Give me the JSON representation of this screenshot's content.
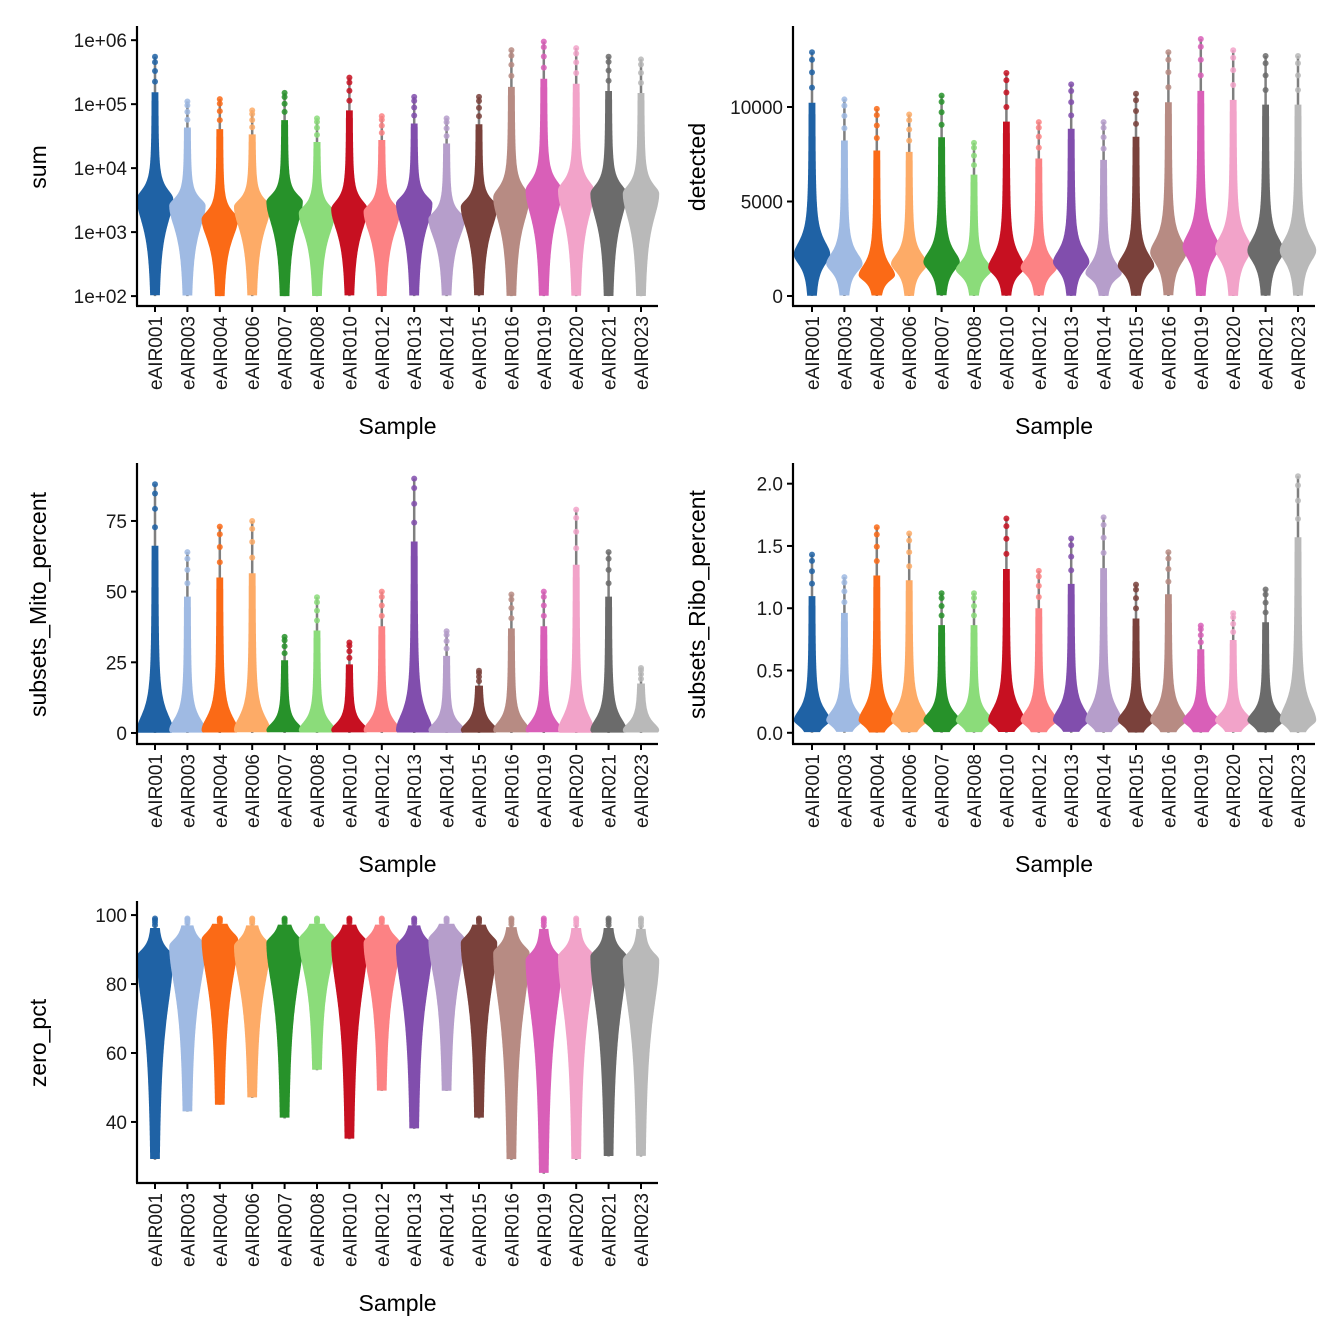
{
  "samples": [
    "eAIR001",
    "eAIR003",
    "eAIR004",
    "eAIR006",
    "eAIR007",
    "eAIR008",
    "eAIR010",
    "eAIR012",
    "eAIR013",
    "eAIR014",
    "eAIR015",
    "eAIR016",
    "eAIR019",
    "eAIR020",
    "eAIR021",
    "eAIR023"
  ],
  "colors": [
    "#1f62a5",
    "#9fbae3",
    "#fb6a16",
    "#fdab67",
    "#27922a",
    "#8bdc7a",
    "#c71021",
    "#fc8284",
    "#814ead",
    "#b69ecb",
    "#7a413b",
    "#b78b83",
    "#d95fb8",
    "#f2a3c9",
    "#6b6b6b",
    "#b9b9b9"
  ],
  "chart_data": [
    {
      "type": "violin",
      "ylabel": "sum",
      "xlabel": "Sample",
      "scale": "log10",
      "ylim": [
        70,
        1550000
      ],
      "yticks": [
        100,
        1000,
        10000,
        100000,
        1000000
      ],
      "ytick_labels": [
        "1e+02",
        "1e+03",
        "1e+04",
        "1e+05",
        "1e+06"
      ],
      "min": [
        100,
        100,
        100,
        100,
        100,
        100,
        100,
        100,
        100,
        100,
        100,
        100,
        100,
        100,
        100,
        100
      ],
      "mode": [
        3300,
        2600,
        1600,
        2500,
        3000,
        2000,
        2300,
        2100,
        2800,
        1600,
        2500,
        3500,
        4500,
        4500,
        4000,
        4000
      ],
      "max": [
        550000,
        110000,
        120000,
        80000,
        150000,
        60000,
        260000,
        65000,
        130000,
        60000,
        130000,
        700000,
        950000,
        750000,
        550000,
        500000
      ]
    },
    {
      "type": "violin",
      "ylabel": "detected",
      "xlabel": "Sample",
      "scale": "linear",
      "ylim": [
        -530,
        14180
      ],
      "yticks": [
        0,
        5000,
        10000
      ],
      "ytick_labels": [
        "0",
        "5000",
        "10000"
      ],
      "min": [
        0,
        0,
        0,
        0,
        0,
        0,
        0,
        0,
        0,
        0,
        0,
        0,
        0,
        0,
        0,
        0
      ],
      "mode": [
        2200,
        1700,
        1100,
        1700,
        1800,
        1400,
        1500,
        1500,
        1800,
        1200,
        1600,
        2300,
        2600,
        2500,
        2400,
        2400
      ],
      "max": [
        12900,
        10400,
        9900,
        9600,
        10600,
        8100,
        11800,
        9200,
        11200,
        9200,
        10700,
        12900,
        13600,
        13000,
        12700,
        12700
      ]
    },
    {
      "type": "violin",
      "ylabel": "subsets_Mito_percent",
      "xlabel": "Sample",
      "scale": "linear",
      "ylim": [
        -3.9,
        94.8
      ],
      "yticks": [
        0,
        25,
        50,
        75
      ],
      "ytick_labels": [
        "0",
        "25",
        "50",
        "75"
      ],
      "min": [
        0,
        0,
        0,
        0,
        0,
        0,
        0,
        0,
        0,
        0,
        0,
        0,
        0,
        0,
        0,
        0
      ],
      "mode": [
        1,
        1,
        1,
        1,
        1,
        1,
        1,
        1,
        1,
        1,
        1,
        1,
        1,
        1,
        1,
        1
      ],
      "max": [
        88,
        64,
        73,
        75,
        34,
        48,
        32,
        50,
        90,
        36,
        22,
        49,
        50,
        79,
        64,
        23
      ]
    },
    {
      "type": "violin",
      "ylabel": "subsets_Ribo_percent",
      "xlabel": "Sample",
      "scale": "linear",
      "ylim": [
        -0.09,
        2.15
      ],
      "yticks": [
        0,
        0.5,
        1.0,
        1.5,
        2.0
      ],
      "ytick_labels": [
        "0.0",
        "0.5",
        "1.0",
        "1.5",
        "2.0"
      ],
      "min": [
        0,
        0,
        0,
        0,
        0,
        0,
        0,
        0,
        0,
        0,
        0,
        0,
        0,
        0,
        0,
        0
      ],
      "mode": [
        0.1,
        0.1,
        0.1,
        0.1,
        0.1,
        0.1,
        0.1,
        0.1,
        0.1,
        0.1,
        0.1,
        0.1,
        0.1,
        0.1,
        0.1,
        0.1
      ],
      "max": [
        1.43,
        1.25,
        1.65,
        1.6,
        1.12,
        1.12,
        1.72,
        1.3,
        1.56,
        1.73,
        1.19,
        1.45,
        0.86,
        0.96,
        1.15,
        2.06
      ]
    },
    {
      "type": "violin",
      "ylabel": "zero_pct",
      "xlabel": "Sample",
      "scale": "linear",
      "ylim": [
        22.3,
        103.5
      ],
      "yticks": [
        40,
        60,
        80,
        100
      ],
      "ytick_labels": [
        "40",
        "60",
        "80",
        "100"
      ],
      "min": [
        29,
        43,
        45,
        47,
        41,
        55,
        35,
        49,
        38,
        49,
        41,
        29,
        25,
        29,
        30,
        30
      ],
      "mode": [
        88,
        91,
        93,
        91,
        92,
        93,
        92,
        92,
        91,
        93,
        92,
        89,
        87,
        88,
        88,
        87
      ],
      "max": [
        99,
        99,
        99,
        99,
        99,
        99,
        99,
        99,
        99,
        99,
        99,
        99,
        99,
        99,
        99,
        99
      ]
    }
  ]
}
